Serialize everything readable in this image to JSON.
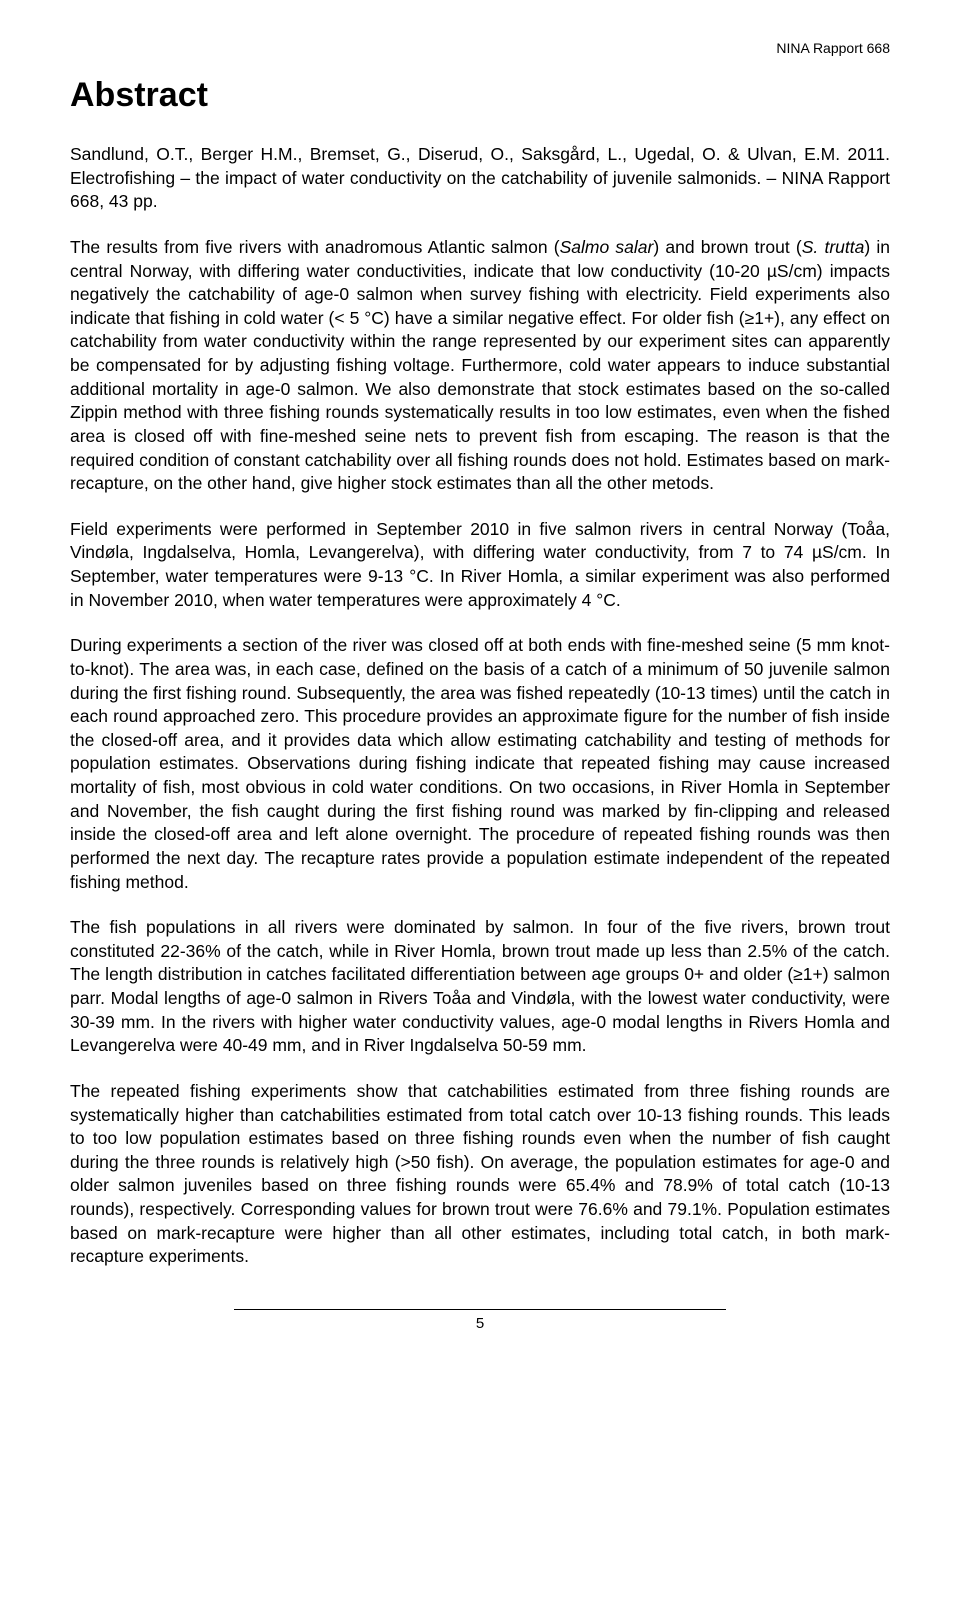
{
  "header": {
    "report_label": "NINA Rapport 668"
  },
  "title": "Abstract",
  "citation": {
    "authors": "Sandlund, O.T., Berger H.M., Bremset, G., Diserud, O., Saksgård, L., Ugedal, O. & Ulvan, E.M. 2011.",
    "title_plain": "Electrofishing – the impact of water conductivity on the catchability of juvenile salmonids.",
    "source": "– NINA Rapport 668, 43 pp."
  },
  "paragraphs": {
    "p1_a": "The results from five rivers with anadromous Atlantic salmon (",
    "p1_species1": "Salmo salar",
    "p1_b": ") and brown trout (",
    "p1_species2": "S. trutta",
    "p1_c": ") in central Norway, with differing water conductivities, indicate that low conductivity (10-20 µS/cm) impacts negatively the catchability of age-0 salmon when survey fishing with electricity. Field experiments also indicate that fishing in cold water (< 5 °C) have a similar negative effect. For older fish (≥1+), any effect on catchability from water conductivity within the range represented by our experiment sites can apparently be compensated for by adjusting fishing voltage. Furthermore, cold water appears to induce substantial additional mortality in age-0 salmon. We also demonstrate that stock estimates based on the so-called Zippin method with three fishing rounds systematically results in too low estimates, even when the fished area is closed off with fine-meshed seine nets to prevent fish from escaping. The reason is that the required condition of constant catchability over all fishing rounds does not hold. Estimates based on mark-recapture, on the other hand, give higher stock estimates than all the other metods.",
    "p2": "Field experiments were performed in September 2010 in five salmon rivers in central Norway (Toåa, Vindøla, Ingdalselva, Homla, Levangerelva), with differing water conductivity, from 7 to 74 µS/cm. In September, water temperatures were 9-13 °C. In River Homla, a similar experiment was also performed in November 2010, when water temperatures were approximately 4 °C.",
    "p3": "During experiments a section of the river was closed off at both ends with fine-meshed seine (5 mm knot-to-knot). The area was, in each case, defined on the basis of a catch of a minimum of 50 juvenile salmon during the first fishing round. Subsequently, the area was fished repeatedly (10-13 times) until the catch in each round approached zero. This procedure provides an approximate figure for the number of fish inside the closed-off area, and it provides data which allow estimating catchability and testing of methods for population estimates. Observations during fishing indicate that repeated fishing may cause increased mortality of fish, most obvious in cold water conditions. On two occasions, in River Homla in September and November, the fish caught during the first fishing round was marked by fin-clipping and released inside the closed-off area and left alone overnight. The procedure of repeated fishing rounds was then performed the next day. The recapture rates provide a population estimate independent of the repeated fishing method.",
    "p4": "The fish populations in all rivers were dominated by salmon. In four of the five rivers, brown trout constituted 22-36% of the catch, while in River Homla, brown trout made up less than 2.5% of the catch. The length distribution in catches facilitated differentiation between age groups 0+ and older (≥1+) salmon parr. Modal lengths of age-0 salmon in Rivers Toåa and Vindøla, with the lowest water conductivity, were 30-39 mm. In the rivers with higher water conductivity values, age-0 modal lengths in Rivers Homla and Levangerelva were 40-49 mm, and in River Ingdalselva 50-59 mm.",
    "p5": "The repeated fishing experiments show that catchabilities estimated from three fishing rounds are systematically higher than catchabilities estimated from total catch over 10-13 fishing rounds. This leads to too low population estimates based on three fishing rounds even when the number of fish caught during the three rounds is relatively high (>50 fish). On average, the population estimates for age-0 and older salmon juveniles based on three fishing rounds were 65.4% and 78.9% of total catch (10-13 rounds), respectively. Corresponding values for brown trout were 76.6% and 79.1%. Population estimates based on mark-recapture were higher than all other estimates, including total catch, in both mark-recapture experiments."
  },
  "footer": {
    "page_number": "5"
  }
}
